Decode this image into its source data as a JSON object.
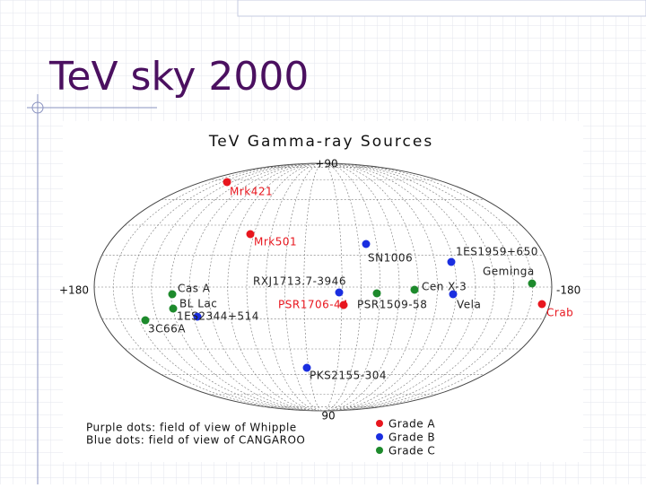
{
  "slide_title": "TeV sky 2000",
  "map": {
    "title": "TeV Gamma-ray Sources",
    "top_label": "+90",
    "bottom_label": "90",
    "left_label": "+180",
    "right_label": "-180",
    "sources": [
      {
        "label": "Mrk421",
        "color": "#e8161e"
      },
      {
        "label": "Mrk501",
        "color": "#e8161e"
      },
      {
        "label": "SN1006",
        "color": "#1a2ee0"
      },
      {
        "label": "1ES1959+650",
        "color": "#1a2ee0"
      },
      {
        "label": "Geminga",
        "color": "#1d8a2c"
      },
      {
        "label": "Cas A",
        "color": "#1d8a2c"
      },
      {
        "label": "RXJ1713.7-3946",
        "color": "#1a2ee0"
      },
      {
        "label": "Cen X-3",
        "color": "#1d8a2c"
      },
      {
        "label": "PSR1509-58",
        "color": "#1d8a2c"
      },
      {
        "label": "Vela",
        "color": "#1a2ee0"
      },
      {
        "label": "Crab",
        "color": "#e8161e"
      },
      {
        "label": "BL Lac",
        "color": "#1d8a2c"
      },
      {
        "label": "1ES2344+514",
        "color": "#1a2ee0"
      },
      {
        "label": "3C66A",
        "color": "#1d8a2c"
      },
      {
        "label": "PSR1706-44",
        "color": "#e8161e"
      },
      {
        "label": "PKS2155-304",
        "color": "#1a2ee0"
      }
    ],
    "notes": [
      "Purple dots: field of view of Whipple",
      "Blue dots: field of view of CANGAROO"
    ],
    "legend": [
      {
        "name": "Grade A",
        "color": "#e8161e"
      },
      {
        "name": "Grade B",
        "color": "#1a2ee0"
      },
      {
        "name": "Grade C",
        "color": "#1d8a2c"
      }
    ]
  }
}
